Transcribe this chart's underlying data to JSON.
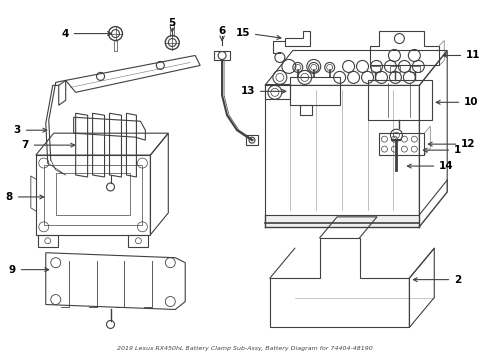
{
  "title": "2019 Lexus RX450hL Battery Clamp Sub-Assy, Battery Diagram for 74404-48190",
  "background_color": "#ffffff",
  "line_color": "#404040",
  "label_color": "#000000",
  "fig_width": 4.9,
  "fig_height": 3.6,
  "dpi": 100
}
